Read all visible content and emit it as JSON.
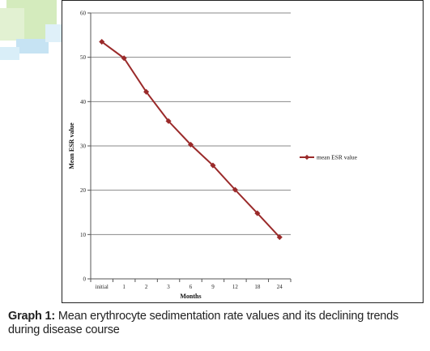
{
  "chart_data": {
    "type": "line",
    "categories": [
      "initial",
      "1",
      "2",
      "3",
      "6",
      "9",
      "12",
      "18",
      "24"
    ],
    "series": [
      {
        "name": "mean ESR value",
        "values": [
          53.5,
          49.8,
          42.2,
          35.6,
          30.3,
          25.6,
          20.1,
          14.8,
          9.4
        ]
      }
    ],
    "xlabel": "Months",
    "ylabel": "Mean ESR value",
    "ylim": [
      0,
      60
    ],
    "yticks": [
      0,
      10,
      20,
      30,
      40,
      50,
      60
    ],
    "grid": "horizontal",
    "legend": "right",
    "line_color": "#9a2a2a"
  },
  "caption": {
    "label": "Graph 1:",
    "text": " Mean erythrocyte sedimentation rate values and its declining trends during disease course"
  },
  "colors": {
    "series": "#9a2a2a",
    "grid": "#888888",
    "accent_green": "#cfe8b8",
    "accent_blue": "#bfe0f2"
  }
}
